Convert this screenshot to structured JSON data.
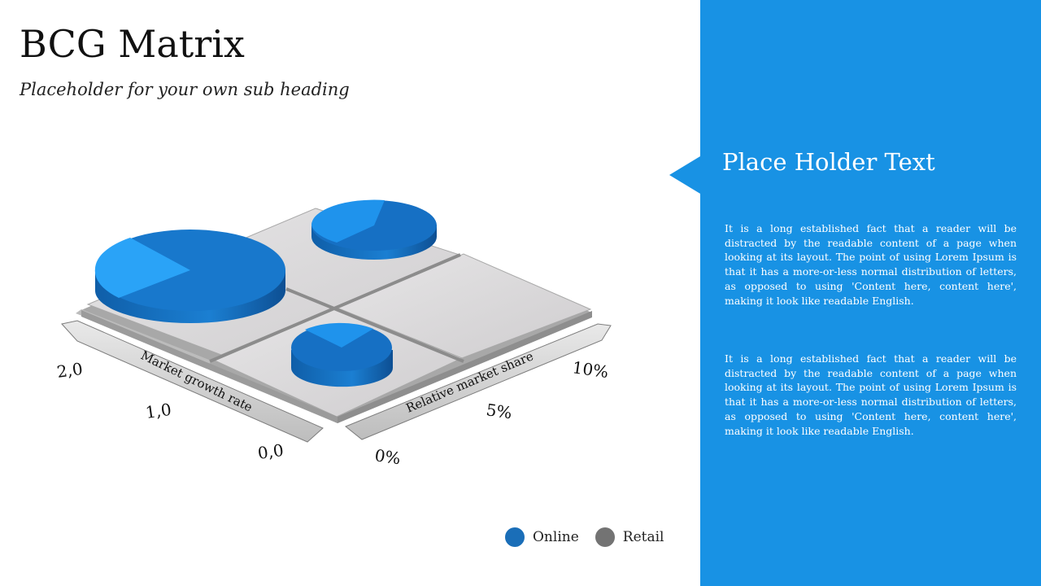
{
  "slide": {
    "title": "BCG Matrix",
    "subtitle": "Placeholder for your own sub heading"
  },
  "diagram": {
    "left_axis_label": "Market growth rate",
    "right_axis_label": "Relative market share",
    "left_ticks": [
      "2,0",
      "1,0",
      "0,0"
    ],
    "right_ticks": [
      "0%",
      "5%",
      "10%"
    ],
    "colors": {
      "tile": "#dad9da",
      "pie_dark": "#1878cc",
      "pie_light": "#2aa3f7",
      "axis_bar": "#d9d9d9"
    }
  },
  "legend": {
    "items": [
      {
        "label": "Online",
        "color": "#1a6eb8"
      },
      {
        "label": "Retail",
        "color": "#737373"
      }
    ]
  },
  "panel": {
    "title": "Place Holder Text",
    "paragraph_1": "It is a long established fact that a reader will be distracted by the readable content of a page when looking at its layout. The point of using Lorem Ipsum is that it has a more-or-less normal distribution of letters, as opposed to using 'Content here, content here', making it look like readable English.",
    "paragraph_2": "It is a long established fact that a reader will be distracted by the readable content of a page when looking at its layout. The point of using Lorem Ipsum is that it has a more-or-less normal distribution of letters, as opposed to using 'Content here, content here', making it look like readable English.",
    "color": "#1892e4"
  }
}
